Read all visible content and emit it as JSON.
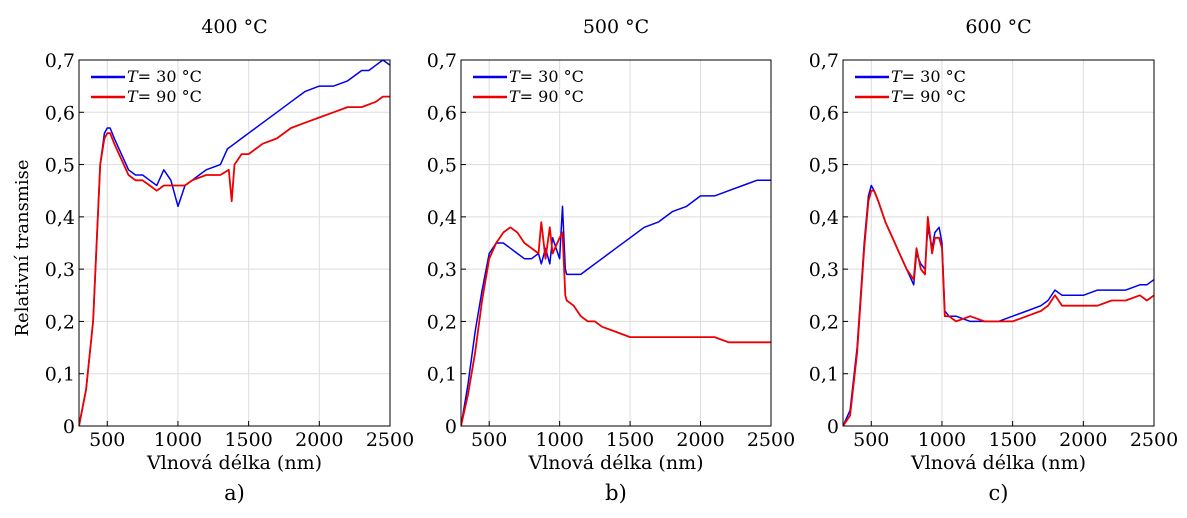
{
  "chart_data": [
    {
      "type": "line",
      "title": "400 °C",
      "panel_label": "a)",
      "xlabel": "Vlnová délka (nm)",
      "ylabel": "Relativní transmise",
      "xlim": [
        300,
        2500
      ],
      "ylim": [
        0,
        0.7
      ],
      "xticks": [
        500,
        1000,
        1500,
        2000,
        2500
      ],
      "xtick_labels": [
        "500",
        "1000",
        "1500",
        "2000",
        "2500"
      ],
      "yticks": [
        0,
        0.1,
        0.2,
        0.3,
        0.4,
        0.5,
        0.6,
        0.7
      ],
      "ytick_labels": [
        "0",
        "0,1",
        "0,2",
        "0,3",
        "0,4",
        "0,5",
        "0,6",
        "0,7"
      ],
      "grid": true,
      "legend_position": "top-left",
      "series": [
        {
          "legend_var": "T",
          "legend_value": "= 30 °C",
          "color": "#0000ee",
          "x": [
            300,
            350,
            400,
            450,
            480,
            500,
            520,
            550,
            600,
            650,
            700,
            750,
            800,
            850,
            900,
            950,
            1000,
            1050,
            1100,
            1150,
            1200,
            1300,
            1350,
            1400,
            1450,
            1500,
            1600,
            1700,
            1800,
            1900,
            2000,
            2100,
            2200,
            2300,
            2350,
            2400,
            2450,
            2500
          ],
          "y": [
            0,
            0.07,
            0.2,
            0.5,
            0.56,
            0.57,
            0.57,
            0.55,
            0.52,
            0.49,
            0.48,
            0.48,
            0.47,
            0.46,
            0.49,
            0.47,
            0.42,
            0.46,
            0.47,
            0.48,
            0.49,
            0.5,
            0.53,
            0.54,
            0.55,
            0.56,
            0.58,
            0.6,
            0.62,
            0.64,
            0.65,
            0.65,
            0.66,
            0.68,
            0.68,
            0.69,
            0.7,
            0.69
          ]
        },
        {
          "legend_var": "T",
          "legend_value": "= 90 °C",
          "color": "#ee0000",
          "x": [
            300,
            350,
            400,
            450,
            480,
            500,
            520,
            550,
            600,
            650,
            700,
            750,
            800,
            850,
            900,
            950,
            1000,
            1050,
            1100,
            1200,
            1300,
            1360,
            1380,
            1400,
            1450,
            1500,
            1600,
            1700,
            1800,
            1900,
            2000,
            2100,
            2200,
            2300,
            2400,
            2450,
            2500
          ],
          "y": [
            0,
            0.07,
            0.2,
            0.5,
            0.55,
            0.56,
            0.56,
            0.54,
            0.51,
            0.48,
            0.47,
            0.47,
            0.46,
            0.45,
            0.46,
            0.46,
            0.46,
            0.46,
            0.47,
            0.48,
            0.48,
            0.49,
            0.43,
            0.5,
            0.52,
            0.52,
            0.54,
            0.55,
            0.57,
            0.58,
            0.59,
            0.6,
            0.61,
            0.61,
            0.62,
            0.63,
            0.63
          ]
        }
      ]
    },
    {
      "type": "line",
      "title": "500 °C",
      "panel_label": "b)",
      "xlabel": "Vlnová délka (nm)",
      "ylabel": "",
      "xlim": [
        300,
        2500
      ],
      "ylim": [
        0,
        0.7
      ],
      "xticks": [
        500,
        1000,
        1500,
        2000,
        2500
      ],
      "xtick_labels": [
        "500",
        "1000",
        "1500",
        "2000",
        "2500"
      ],
      "yticks": [
        0,
        0.1,
        0.2,
        0.3,
        0.4,
        0.5,
        0.6,
        0.7
      ],
      "ytick_labels": [
        "0",
        "0,1",
        "0,2",
        "0,3",
        "0,4",
        "0,5",
        "0,6",
        "0,7"
      ],
      "grid": true,
      "legend_position": "top-left",
      "series": [
        {
          "legend_var": "T",
          "legend_value": "= 30 °C",
          "color": "#0000ee",
          "x": [
            300,
            350,
            400,
            450,
            500,
            550,
            600,
            650,
            700,
            750,
            800,
            850,
            870,
            900,
            930,
            950,
            1000,
            1020,
            1040,
            1050,
            1100,
            1150,
            1200,
            1300,
            1400,
            1500,
            1600,
            1700,
            1800,
            1900,
            2000,
            2100,
            2200,
            2300,
            2400,
            2450,
            2500
          ],
          "y": [
            0,
            0.08,
            0.18,
            0.26,
            0.33,
            0.35,
            0.35,
            0.34,
            0.33,
            0.32,
            0.32,
            0.33,
            0.31,
            0.34,
            0.31,
            0.36,
            0.32,
            0.42,
            0.3,
            0.29,
            0.29,
            0.29,
            0.3,
            0.32,
            0.34,
            0.36,
            0.38,
            0.39,
            0.41,
            0.42,
            0.44,
            0.44,
            0.45,
            0.46,
            0.47,
            0.47,
            0.47
          ]
        },
        {
          "legend_var": "T",
          "legend_value": "= 90 °C",
          "color": "#ee0000",
          "x": [
            300,
            350,
            400,
            450,
            500,
            550,
            600,
            650,
            700,
            750,
            800,
            850,
            870,
            900,
            930,
            950,
            1000,
            1020,
            1040,
            1050,
            1100,
            1150,
            1200,
            1250,
            1300,
            1400,
            1500,
            1600,
            1700,
            1800,
            1900,
            2000,
            2100,
            2200,
            2300,
            2400,
            2450,
            2500
          ],
          "y": [
            0,
            0.06,
            0.14,
            0.24,
            0.32,
            0.35,
            0.37,
            0.38,
            0.37,
            0.35,
            0.34,
            0.33,
            0.39,
            0.32,
            0.38,
            0.33,
            0.36,
            0.37,
            0.25,
            0.24,
            0.23,
            0.21,
            0.2,
            0.2,
            0.19,
            0.18,
            0.17,
            0.17,
            0.17,
            0.17,
            0.17,
            0.17,
            0.17,
            0.16,
            0.16,
            0.16,
            0.16,
            0.16
          ]
        }
      ]
    },
    {
      "type": "line",
      "title": "600 °C",
      "panel_label": "c)",
      "xlabel": "Vlnová délka (nm)",
      "ylabel": "",
      "xlim": [
        300,
        2500
      ],
      "ylim": [
        0,
        0.7
      ],
      "xticks": [
        500,
        1000,
        1500,
        2000,
        2500
      ],
      "xtick_labels": [
        "500",
        "1000",
        "1500",
        "2000",
        "2500"
      ],
      "yticks": [
        0,
        0.1,
        0.2,
        0.3,
        0.4,
        0.5,
        0.6,
        0.7
      ],
      "ytick_labels": [
        "0",
        "0,1",
        "0,2",
        "0,3",
        "0,4",
        "0,5",
        "0,6",
        "0,7"
      ],
      "grid": true,
      "legend_position": "top-left",
      "series": [
        {
          "legend_var": "T",
          "legend_value": "= 30 °C",
          "color": "#0000ee",
          "x": [
            300,
            350,
            400,
            450,
            480,
            500,
            520,
            550,
            600,
            650,
            700,
            750,
            800,
            820,
            850,
            880,
            900,
            930,
            950,
            980,
            1000,
            1020,
            1050,
            1100,
            1200,
            1300,
            1400,
            1500,
            1600,
            1700,
            1750,
            1800,
            1850,
            1900,
            2000,
            2100,
            2200,
            2300,
            2400,
            2450,
            2500
          ],
          "y": [
            0,
            0.03,
            0.15,
            0.35,
            0.44,
            0.46,
            0.45,
            0.43,
            0.39,
            0.36,
            0.33,
            0.3,
            0.27,
            0.33,
            0.31,
            0.3,
            0.38,
            0.34,
            0.37,
            0.38,
            0.35,
            0.22,
            0.21,
            0.21,
            0.2,
            0.2,
            0.2,
            0.21,
            0.22,
            0.23,
            0.24,
            0.26,
            0.25,
            0.25,
            0.25,
            0.26,
            0.26,
            0.26,
            0.27,
            0.27,
            0.28
          ]
        },
        {
          "legend_var": "T",
          "legend_value": "= 90 °C",
          "color": "#ee0000",
          "x": [
            300,
            350,
            400,
            450,
            480,
            500,
            520,
            550,
            600,
            650,
            700,
            750,
            800,
            820,
            850,
            880,
            900,
            930,
            950,
            980,
            1000,
            1020,
            1050,
            1100,
            1200,
            1300,
            1400,
            1500,
            1600,
            1700,
            1750,
            1800,
            1850,
            1900,
            2000,
            2100,
            2200,
            2300,
            2400,
            2450,
            2500
          ],
          "y": [
            0,
            0.02,
            0.14,
            0.34,
            0.43,
            0.45,
            0.45,
            0.43,
            0.39,
            0.36,
            0.33,
            0.3,
            0.28,
            0.34,
            0.3,
            0.29,
            0.4,
            0.33,
            0.36,
            0.36,
            0.34,
            0.21,
            0.21,
            0.2,
            0.21,
            0.2,
            0.2,
            0.2,
            0.21,
            0.22,
            0.23,
            0.25,
            0.23,
            0.23,
            0.23,
            0.23,
            0.24,
            0.24,
            0.25,
            0.24,
            0.25
          ]
        }
      ]
    }
  ]
}
